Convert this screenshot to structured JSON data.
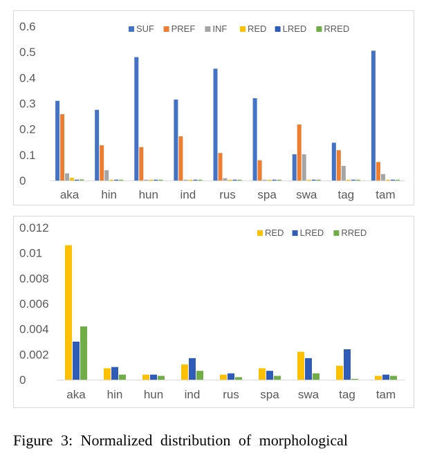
{
  "colors": {
    "SUF": "#4472c4",
    "PREF": "#ed7d31",
    "INF": "#a5a5a5",
    "RED": "#ffc000",
    "LRED": "#2e5cb8",
    "RRED": "#70ad47",
    "axis": "#d9d9d9",
    "text": "#595959"
  },
  "chart_data": [
    {
      "type": "bar",
      "categories": [
        "aka",
        "hin",
        "hun",
        "ind",
        "rus",
        "spa",
        "swa",
        "tag",
        "tam"
      ],
      "ylim": [
        0,
        0.6
      ],
      "yticks": [
        "0",
        "0.1",
        "0.2",
        "0.3",
        "0.4",
        "0.5",
        "0.6"
      ],
      "legend_position": "top",
      "series": [
        {
          "name": "SUF",
          "values": [
            0.31,
            0.275,
            0.48,
            0.315,
            0.435,
            0.32,
            0.102,
            0.147,
            0.505
          ]
        },
        {
          "name": "PREF",
          "values": [
            0.258,
            0.137,
            0.13,
            0.172,
            0.107,
            0.079,
            0.218,
            0.118,
            0.072
          ]
        },
        {
          "name": "INF",
          "values": [
            0.028,
            0.04,
            0.0,
            0.0,
            0.009,
            0.0,
            0.102,
            0.057,
            0.025
          ]
        },
        {
          "name": "RED",
          "values": [
            0.0106,
            0.0009,
            0.0004,
            0.0012,
            0.0004,
            0.0009,
            0.0022,
            0.0011,
            0.0003
          ]
        },
        {
          "name": "LRED",
          "values": [
            0.003,
            0.001,
            0.0004,
            0.0017,
            0.0005,
            0.0007,
            0.0017,
            0.0024,
            0.0004
          ]
        },
        {
          "name": "RRED",
          "values": [
            0.0042,
            0.0004,
            0.0003,
            0.0007,
            0.0002,
            0.0003,
            0.0005,
            0.0,
            0.0003
          ]
        }
      ]
    },
    {
      "type": "bar",
      "categories": [
        "aka",
        "hin",
        "hun",
        "ind",
        "rus",
        "spa",
        "swa",
        "tag",
        "tam"
      ],
      "ylim": [
        0,
        0.012
      ],
      "yticks": [
        "0",
        "0.002",
        "0.004",
        "0.006",
        "0.008",
        "0.01",
        "0.012"
      ],
      "legend_position": "top-right",
      "series": [
        {
          "name": "RED",
          "values": [
            0.0106,
            0.0009,
            0.0004,
            0.0012,
            0.0004,
            0.0009,
            0.0022,
            0.0011,
            0.0003
          ]
        },
        {
          "name": "LRED",
          "values": [
            0.003,
            0.001,
            0.0004,
            0.0017,
            0.0005,
            0.0007,
            0.0017,
            0.0024,
            0.0004
          ]
        },
        {
          "name": "RRED",
          "values": [
            0.0042,
            0.0004,
            0.0003,
            0.0007,
            0.0002,
            0.0003,
            0.0005,
            0.0,
            0.0003
          ]
        }
      ]
    }
  ],
  "caption": "Figure 3: Normalized distribution of morphological"
}
